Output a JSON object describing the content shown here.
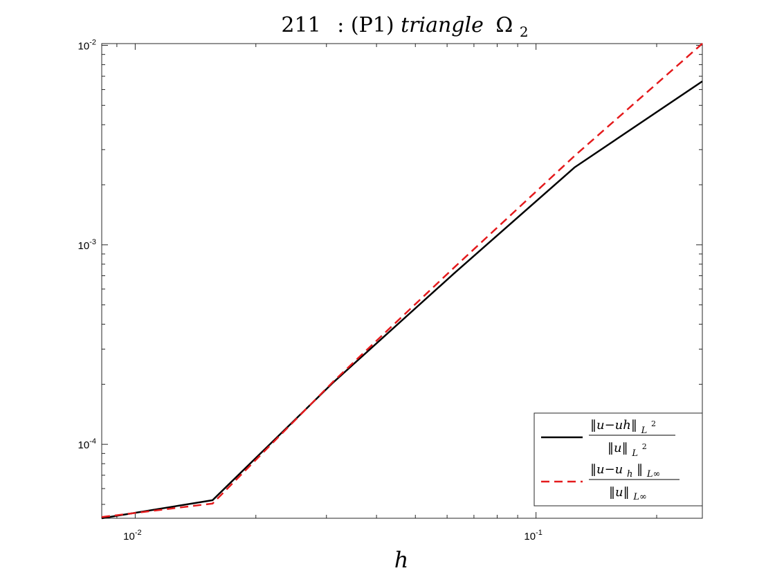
{
  "chart_data": {
    "type": "line",
    "title": "211  : (P1) triangle Ω₂",
    "title_parts": {
      "number": "211",
      "colon": ": (P1) ",
      "italic": "triangle",
      "omega": "Ω",
      "sub": "2"
    },
    "xlabel": "h",
    "ylabel": "",
    "xscale": "log",
    "yscale": "log",
    "xlim": [
      0.00825,
      0.26
    ],
    "ylim": [
      4.26e-05,
      0.0102
    ],
    "grid": false,
    "legend_position": "bottom-right",
    "x_ticks": [
      {
        "value": 0.01,
        "base": "10",
        "exp": "-2"
      },
      {
        "value": 0.1,
        "base": "10",
        "exp": "-1"
      }
    ],
    "y_ticks": [
      {
        "value": 0.0001,
        "base": "10",
        "exp": "-4"
      },
      {
        "value": 0.001,
        "base": "10",
        "exp": "-3"
      },
      {
        "value": 0.01,
        "base": "10",
        "exp": "-2"
      }
    ],
    "series": [
      {
        "name": "‖u−uh‖_L² / ‖u‖_L²",
        "legend_num": "‖u−uh‖",
        "legend_num_sub": "L",
        "legend_num_sup": "2",
        "legend_den": "‖u‖",
        "legend_den_sub": "L",
        "legend_den_sup": "2",
        "color": "#000000",
        "dash": "solid",
        "x": [
          0.00825,
          0.0156,
          0.03125,
          0.0625,
          0.125,
          0.26
        ],
        "y": [
          4.26e-05,
          5.25e-05,
          0.000205,
          0.00072,
          0.00245,
          0.0066
        ]
      },
      {
        "name": "‖u−u_h‖_L∞ / ‖u‖_L∞",
        "legend_num": "‖u−u",
        "legend_num_h": "h",
        "legend_num_close": "‖",
        "legend_num_sub": "L∞",
        "legend_den": "‖u‖",
        "legend_den_sub": "L∞",
        "color": "#e41a1c",
        "dash": "dashed",
        "x": [
          0.00825,
          0.0156,
          0.03125,
          0.0625,
          0.125,
          0.26
        ],
        "y": [
          4.32e-05,
          5.05e-05,
          0.000207,
          0.00077,
          0.0028,
          0.0102
        ]
      }
    ]
  }
}
